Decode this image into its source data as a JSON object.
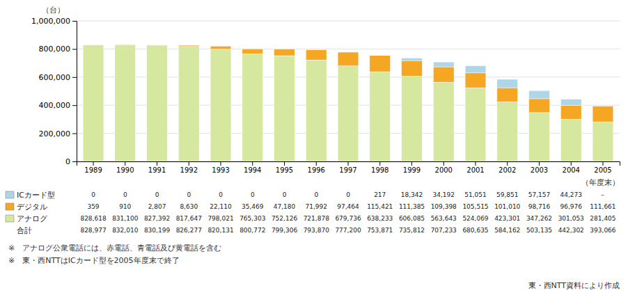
{
  "chart_data": {
    "type": "bar",
    "stacked": true,
    "categories": [
      "1989",
      "1990",
      "1991",
      "1992",
      "1993",
      "1994",
      "1995",
      "1996",
      "1997",
      "1998",
      "1999",
      "2000",
      "2001",
      "2002",
      "2003",
      "2004",
      "2005"
    ],
    "series": [
      {
        "name": "アナログ",
        "color": "#d6e8a0",
        "values": [
          828618,
          831100,
          827392,
          817647,
          798021,
          765303,
          752126,
          721878,
          679736,
          638233,
          606085,
          563643,
          524069,
          423301,
          347262,
          301053,
          281405
        ],
        "value_labels": [
          "828,618",
          "831,100",
          "827,392",
          "817,647",
          "798,021",
          "765,303",
          "752,126",
          "721,878",
          "679,736",
          "638,233",
          "606,085",
          "563,643",
          "524,069",
          "423,301",
          "347,262",
          "301,053",
          "281,405"
        ]
      },
      {
        "name": "デジタル",
        "color": "#f5a623",
        "values": [
          359,
          910,
          2807,
          8630,
          22110,
          35469,
          47180,
          71992,
          97464,
          115421,
          111385,
          109398,
          105515,
          101010,
          98716,
          96976,
          111661
        ],
        "value_labels": [
          "359",
          "910",
          "2,807",
          "8,630",
          "22,110",
          "35,469",
          "47,180",
          "71,992",
          "97,464",
          "115,421",
          "111,385",
          "109,398",
          "105,515",
          "101,010",
          "98,716",
          "96,976",
          "111,661"
        ]
      },
      {
        "name": "ICカード型",
        "color": "#aed6e8",
        "values": [
          0,
          0,
          0,
          0,
          0,
          0,
          0,
          0,
          0,
          217,
          18342,
          34192,
          51051,
          59851,
          57157,
          44273,
          0
        ],
        "value_labels": [
          "0",
          "0",
          "0",
          "0",
          "0",
          "0",
          "0",
          "0",
          "0",
          "217",
          "18,342",
          "34,192",
          "51,051",
          "59,851",
          "57,157",
          "44,273",
          "－"
        ]
      }
    ],
    "total_name": "合計",
    "totals": [
      828977,
      832010,
      830199,
      826277,
      820131,
      800772,
      799306,
      793870,
      777200,
      753871,
      735812,
      707233,
      680635,
      584162,
      503135,
      442302,
      393066
    ],
    "totals_labels": [
      "828,977",
      "832,010",
      "830,199",
      "826,277",
      "820,131",
      "800,772",
      "799,306",
      "793,870",
      "777,200",
      "753,871",
      "735,812",
      "707,233",
      "680,635",
      "584,162",
      "503,135",
      "442,302",
      "393,066"
    ],
    "ylim": [
      0,
      1000000
    ],
    "yticks": [
      0,
      {
        "value": 200000,
        "label": "200,000"
      },
      {
        "value": 400000,
        "label": "400,000"
      },
      {
        "value": 600000,
        "label": "600,000"
      },
      {
        "value": 800000,
        "label": "800,000"
      },
      {
        "value": 1000000,
        "label": "1,000,000"
      }
    ],
    "ylabel": "（台）",
    "xlabel": "（年度末）",
    "grid": true,
    "notes": [
      "※　アナログ公衆電話には、赤電話、青電話及び黄電話を含む",
      "※　東・西NTTはICカード型を2005年度末で終了"
    ],
    "source": "東・西NTT資料により作成"
  }
}
